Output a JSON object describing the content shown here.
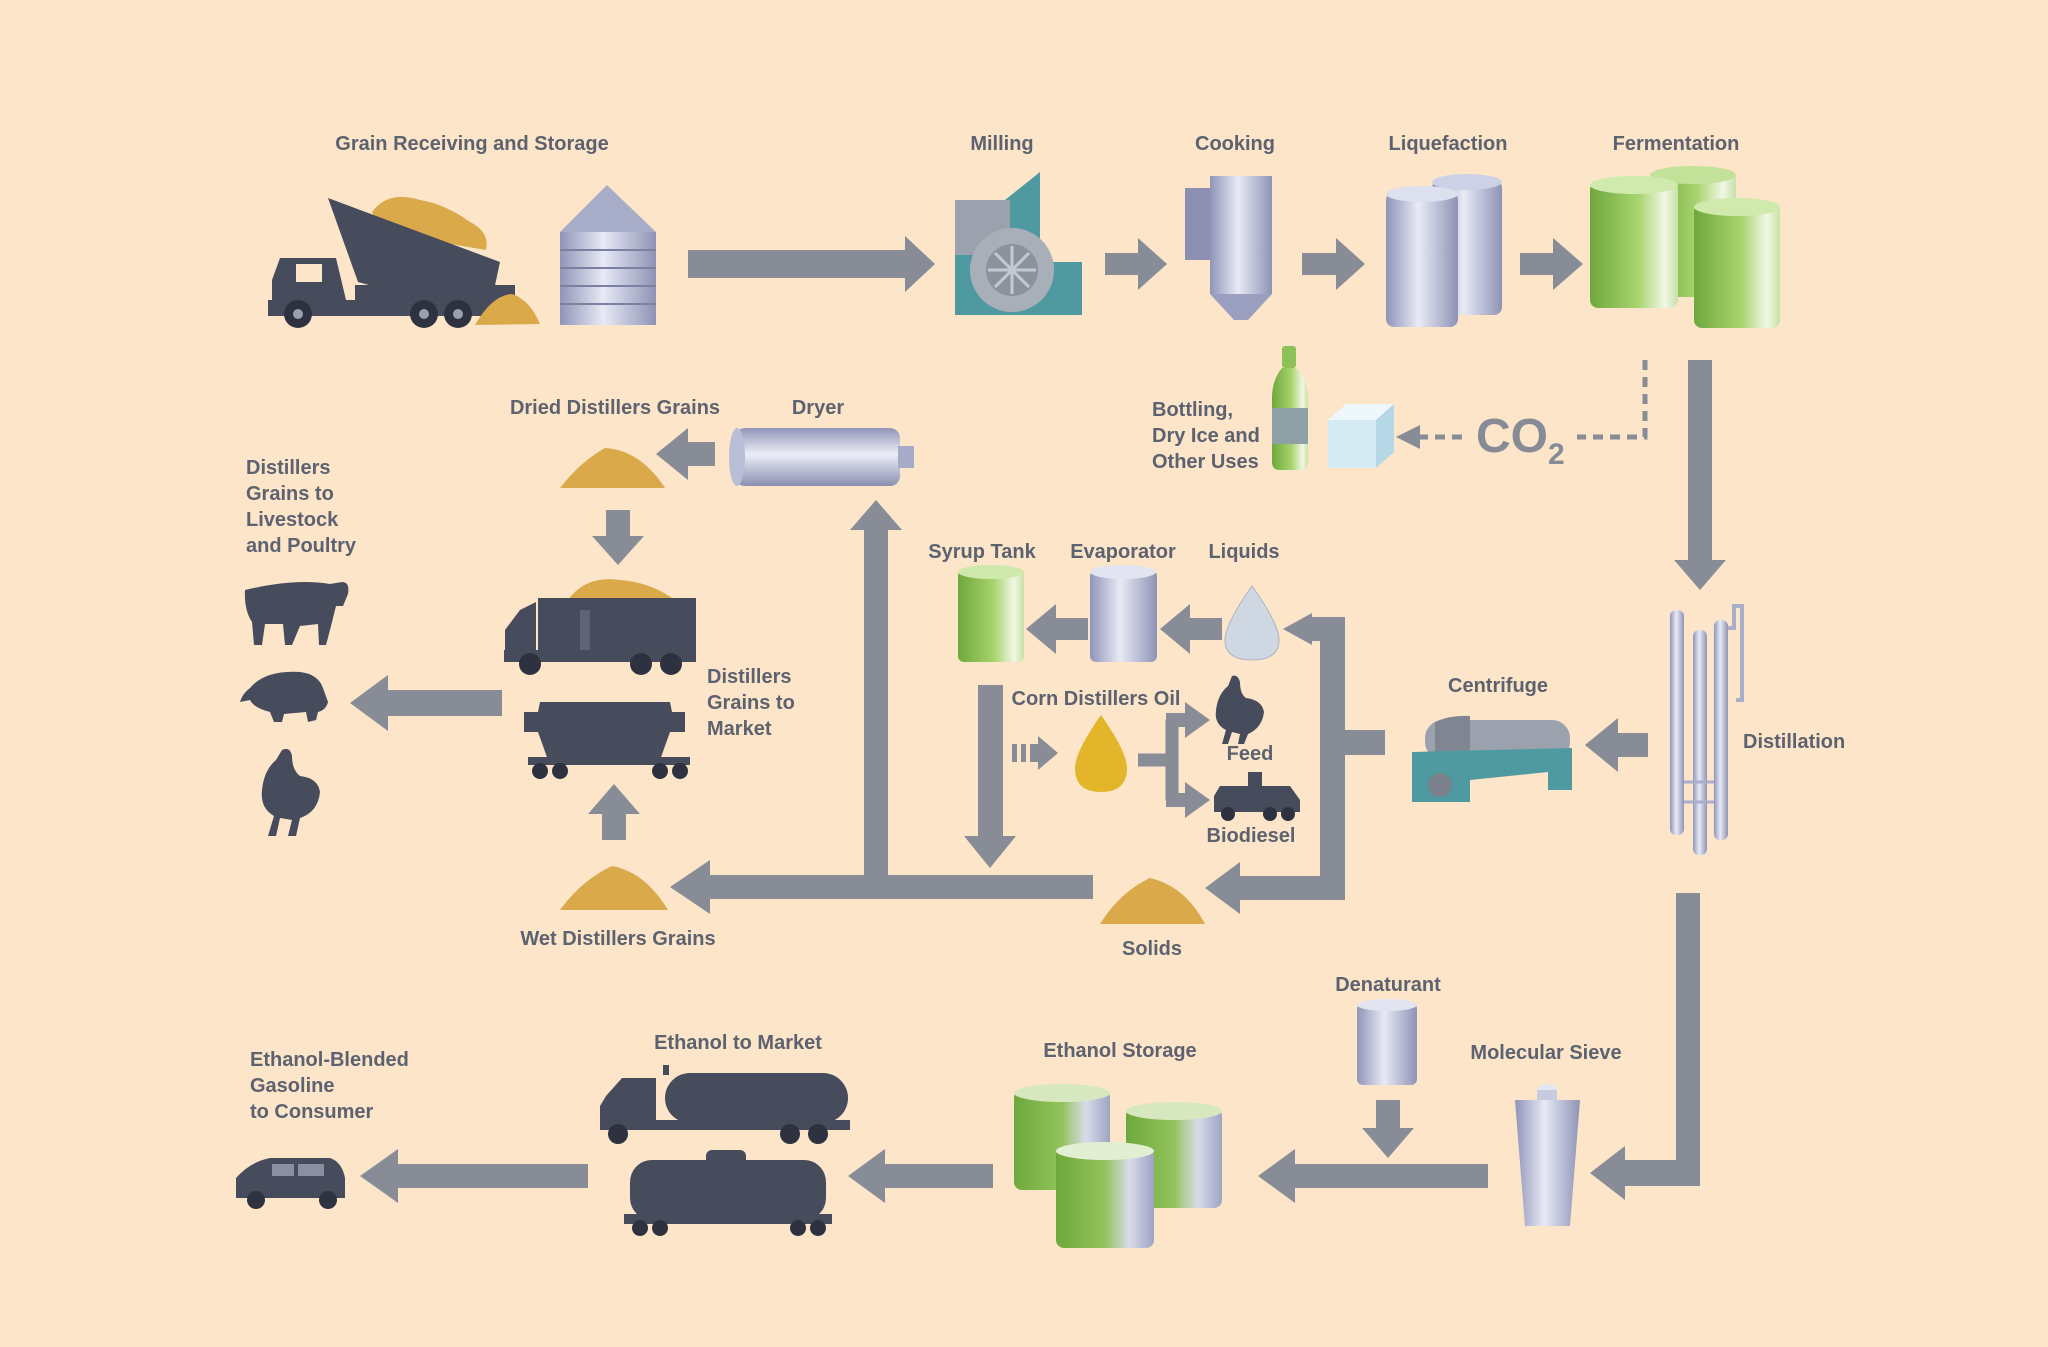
{
  "colors": {
    "background": "#fce5c8",
    "arrow": "#888c97",
    "label": "#5d6270",
    "silhouette": "#474c5c",
    "grain": "#d9a94a",
    "tank_green": "#7fb24b",
    "tank_steel": "#b3b8d0",
    "equipment_teal": "#4f9aa0"
  },
  "labels": {
    "grain_receiving": "Grain Receiving and Storage",
    "milling": "Milling",
    "cooking": "Cooking",
    "liquefaction": "Liquefaction",
    "fermentation": "Fermentation",
    "dried_distillers_grains": "Dried Distillers Grains",
    "dryer": "Dryer",
    "livestock": [
      "Distillers",
      "Grains to",
      "Livestock",
      "and Poultry"
    ],
    "bottling": [
      "Bottling,",
      "Dry Ice and",
      "Other Uses"
    ],
    "co2_main": "CO",
    "co2_sub": "2",
    "syrup_tank": "Syrup Tank",
    "evaporator": "Evaporator",
    "liquids": "Liquids",
    "centrifuge": "Centrifuge",
    "distillation": "Distillation",
    "corn_distillers_oil": "Corn Distillers Oil",
    "feed": "Feed",
    "biodiesel": "Biodiesel",
    "market": [
      "Distillers",
      "Grains to",
      "Market"
    ],
    "wet_distillers_grains": "Wet Distillers Grains",
    "solids": "Solids",
    "denaturant": "Denaturant",
    "ethanol_to_market": "Ethanol to Market",
    "ethanol_storage": "Ethanol Storage",
    "molecular_sieve": "Molecular Sieve",
    "consumer": [
      "Ethanol-Blended",
      "Gasoline",
      "to Consumer"
    ]
  },
  "icons": [
    "dump-truck-icon",
    "silo-icon",
    "mill-icon",
    "cooker-icon",
    "liquefaction-tanks-icon",
    "fermentation-tanks-icon",
    "bottle-icon",
    "dry-ice-icon",
    "dryer-icon",
    "grain-pile-icon",
    "cow-icon",
    "pig-icon",
    "chicken-icon",
    "train-hopper-icon",
    "syrup-tank-icon",
    "evaporator-icon",
    "liquid-drop-icon",
    "oil-drop-icon",
    "semi-truck-icon",
    "centrifuge-icon",
    "distillation-column-icon",
    "denaturant-tank-icon",
    "molecular-sieve-icon",
    "ethanol-storage-tanks-icon",
    "tanker-truck-icon",
    "tank-car-icon",
    "car-icon"
  ]
}
